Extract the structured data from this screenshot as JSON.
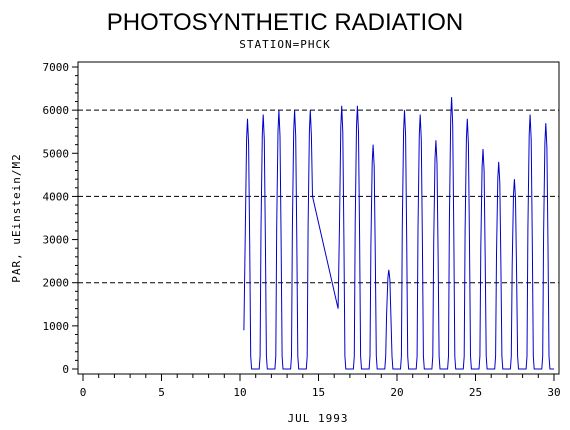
{
  "chart_data": {
    "type": "line",
    "title": "PHOTOSYNTHETIC RADIATION",
    "subtitle": "STATION=PHCK",
    "xlabel": "JUL 1993",
    "ylabel": "PAR, uEinstein/M2",
    "xlim": [
      0,
      30
    ],
    "ylim": [
      0,
      7000
    ],
    "x_ticks": [
      "0",
      "5",
      "10",
      "15",
      "20",
      "25",
      "30"
    ],
    "y_ticks": [
      "0",
      "1000",
      "2000",
      "3000",
      "4000",
      "5000",
      "6000",
      "7000"
    ],
    "reference_lines_y": [
      2000,
      4000,
      6000
    ],
    "series_color": "#0000cc",
    "series": [
      {
        "days": [
          {
            "day": 10,
            "peak": 5800,
            "start": 900
          },
          {
            "day": 11,
            "peak": 5900
          },
          {
            "day": 12,
            "peak": 6000
          },
          {
            "day": 13,
            "peak": 6000
          },
          {
            "day": 14,
            "peak": 6000,
            "end": 4000
          },
          {
            "day": 16,
            "peak": 6100,
            "start": 1400
          },
          {
            "day": 17,
            "peak": 6100
          },
          {
            "day": 18,
            "peak": 5200
          },
          {
            "day": 19,
            "peak": 2300
          },
          {
            "day": 20,
            "peak": 6000
          },
          {
            "day": 21,
            "peak": 5900
          },
          {
            "day": 22,
            "peak": 5300
          },
          {
            "day": 23,
            "peak": 6300
          },
          {
            "day": 24,
            "peak": 5800
          },
          {
            "day": 25,
            "peak": 5100
          },
          {
            "day": 26,
            "peak": 4800
          },
          {
            "day": 27,
            "peak": 4400
          },
          {
            "day": 28,
            "peak": 5900
          },
          {
            "day": 29,
            "peak": 5700
          }
        ]
      }
    ]
  }
}
